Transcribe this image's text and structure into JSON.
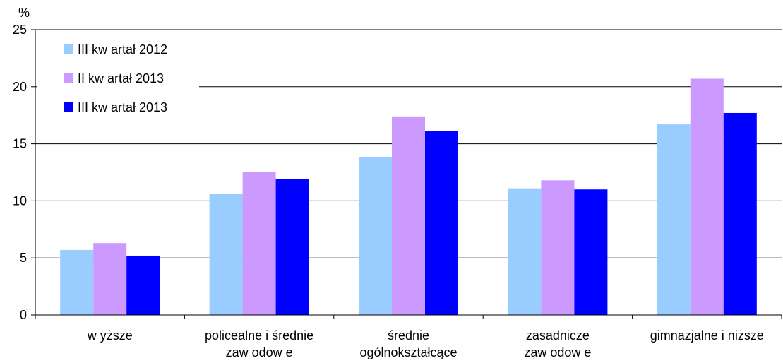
{
  "chart_data": {
    "type": "bar",
    "title": "",
    "xlabel": "",
    "ylabel": "%",
    "ylim": [
      0,
      25
    ],
    "yticks": [
      0,
      5,
      10,
      15,
      20,
      25
    ],
    "grid": true,
    "legend_position": "top-left",
    "categories": [
      [
        "w yższe"
      ],
      [
        "policealne i średnie",
        "zaw odow e"
      ],
      [
        "średnie",
        "ogólnokształcące"
      ],
      [
        "zasadnicze",
        "zaw odow e"
      ],
      [
        "gimnazjalne i niższe"
      ]
    ],
    "series": [
      {
        "name": "III kw artał 2012",
        "color": "#99ccff",
        "values": [
          5.7,
          10.6,
          13.8,
          11.1,
          16.7
        ]
      },
      {
        "name": "II kw artał 2013",
        "color": "#cc99ff",
        "values": [
          6.3,
          12.5,
          17.4,
          11.8,
          20.7
        ]
      },
      {
        "name": "III kw artał 2013",
        "color": "#0000ff",
        "values": [
          5.2,
          11.9,
          16.1,
          11.0,
          17.7
        ]
      }
    ]
  }
}
